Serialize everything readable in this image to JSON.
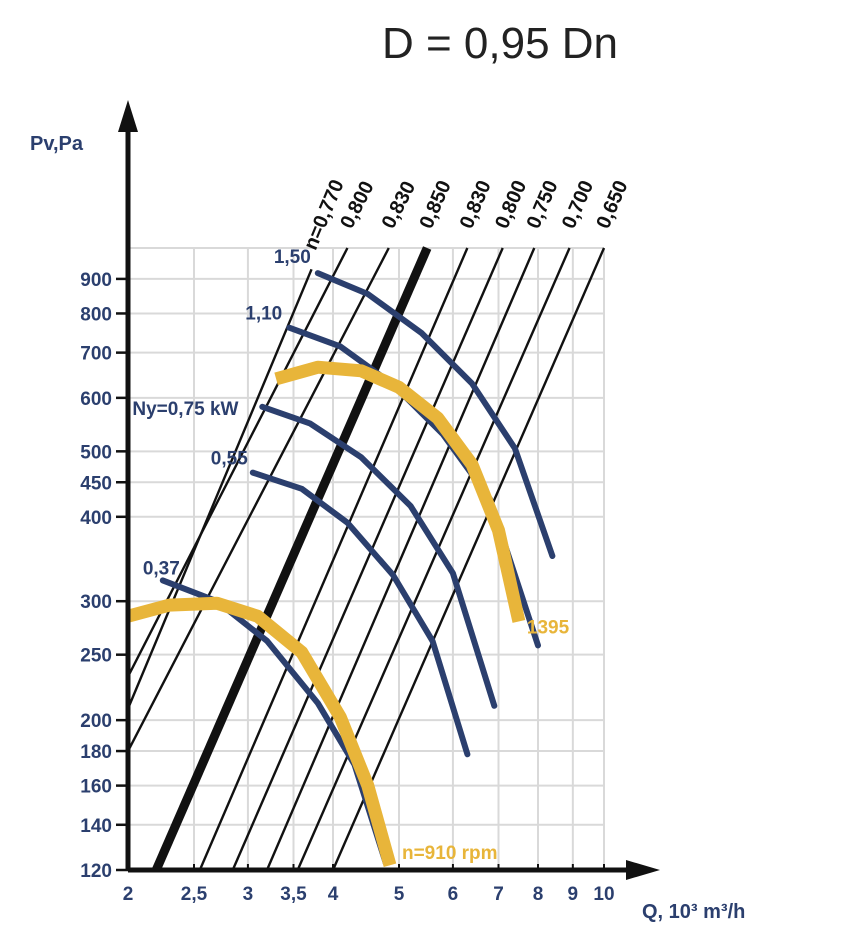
{
  "chart_data": {
    "type": "line",
    "title": "D = 0,95 Dn",
    "ylabel": "Pv,Pa",
    "xlabel": "Q, 10³ m³/h",
    "xscale": "log",
    "yscale": "log",
    "xlim": [
      2,
      10
    ],
    "ylim": [
      120,
      1000
    ],
    "x_ticks": [
      {
        "v": 2,
        "label": "2"
      },
      {
        "v": 2.5,
        "label": "2,5"
      },
      {
        "v": 3,
        "label": "3"
      },
      {
        "v": 3.5,
        "label": "3,5"
      },
      {
        "v": 4,
        "label": "4"
      },
      {
        "v": 5,
        "label": "5"
      },
      {
        "v": 6,
        "label": "6"
      },
      {
        "v": 7,
        "label": "7"
      },
      {
        "v": 8,
        "label": "8"
      },
      {
        "v": 9,
        "label": "9"
      },
      {
        "v": 10,
        "label": "10"
      }
    ],
    "y_ticks": [
      {
        "v": 120,
        "label": "120"
      },
      {
        "v": 140,
        "label": "140"
      },
      {
        "v": 160,
        "label": "160"
      },
      {
        "v": 180,
        "label": "180"
      },
      {
        "v": 200,
        "label": "200"
      },
      {
        "v": 250,
        "label": "250"
      },
      {
        "v": 300,
        "label": "300"
      },
      {
        "v": 400,
        "label": "400"
      },
      {
        "v": 450,
        "label": "450"
      },
      {
        "v": 500,
        "label": "500"
      },
      {
        "v": 600,
        "label": "600"
      },
      {
        "v": 700,
        "label": "700"
      },
      {
        "v": 800,
        "label": "800"
      },
      {
        "v": 900,
        "label": "900"
      }
    ],
    "grid": true,
    "colors": {
      "axis": "#111111",
      "power": "#2b3f6e",
      "speed": "#e8b53a",
      "efficiency": "#111111",
      "grid": "#d9d9d9"
    },
    "efficiency_lines": [
      {
        "label": "n=0,770",
        "bold": false,
        "points": [
          [
            2,
            208
          ],
          [
            3.72,
            930
          ]
        ]
      },
      {
        "label": "0,800",
        "bold": false,
        "points": [
          [
            2,
            232
          ],
          [
            4.2,
            1000
          ]
        ]
      },
      {
        "label": "0,830",
        "bold": false,
        "points": [
          [
            2,
            180
          ],
          [
            4.83,
            1000
          ]
        ]
      },
      {
        "label": "0,850",
        "bold": true,
        "points": [
          [
            2.2,
            120
          ],
          [
            5.5,
            1000
          ]
        ]
      },
      {
        "label": "0,830",
        "bold": false,
        "points": [
          [
            2.55,
            120
          ],
          [
            6.3,
            1000
          ]
        ]
      },
      {
        "label": "0,800",
        "bold": false,
        "points": [
          [
            2.85,
            120
          ],
          [
            7.1,
            1000
          ]
        ]
      },
      {
        "label": "0,750",
        "bold": false,
        "points": [
          [
            3.2,
            120
          ],
          [
            7.9,
            1000
          ]
        ]
      },
      {
        "label": "0,700",
        "bold": false,
        "points": [
          [
            3.55,
            120
          ],
          [
            8.9,
            1000
          ]
        ]
      },
      {
        "label": "0,650",
        "bold": false,
        "points": [
          [
            4.0,
            120
          ],
          [
            10,
            1000
          ]
        ]
      }
    ],
    "power_curves": [
      {
        "label": "0,37",
        "points": [
          [
            2.25,
            322
          ],
          [
            2.7,
            300
          ],
          [
            3.2,
            262
          ],
          [
            3.8,
            212
          ],
          [
            4.3,
            172
          ],
          [
            4.78,
            123
          ]
        ]
      },
      {
        "label": "0,55",
        "points": [
          [
            3.05,
            465
          ],
          [
            3.6,
            440
          ],
          [
            4.2,
            392
          ],
          [
            4.9,
            328
          ],
          [
            5.6,
            262
          ],
          [
            6.3,
            178
          ]
        ]
      },
      {
        "label": "Ny=0,75 kW",
        "points": [
          [
            3.15,
            582
          ],
          [
            3.7,
            550
          ],
          [
            4.4,
            490
          ],
          [
            5.2,
            415
          ],
          [
            6.0,
            330
          ],
          [
            6.9,
            210
          ]
        ]
      },
      {
        "label": "1,10",
        "points": [
          [
            3.45,
            762
          ],
          [
            4.1,
            715
          ],
          [
            4.9,
            628
          ],
          [
            5.8,
            530
          ],
          [
            6.8,
            425
          ],
          [
            8.0,
            258
          ]
        ]
      },
      {
        "label": "1,50",
        "points": [
          [
            3.8,
            918
          ],
          [
            4.5,
            855
          ],
          [
            5.4,
            748
          ],
          [
            6.4,
            630
          ],
          [
            7.4,
            505
          ],
          [
            8.4,
            350
          ]
        ]
      }
    ],
    "speed_curves": [
      {
        "label": "n=910 rpm",
        "points": [
          [
            2.0,
            285
          ],
          [
            2.3,
            296
          ],
          [
            2.7,
            298
          ],
          [
            3.1,
            285
          ],
          [
            3.6,
            252
          ],
          [
            4.1,
            202
          ],
          [
            4.5,
            160
          ],
          [
            4.85,
            122
          ]
        ]
      },
      {
        "label": "1395",
        "points": [
          [
            3.3,
            640
          ],
          [
            3.8,
            666
          ],
          [
            4.4,
            658
          ],
          [
            5.0,
            622
          ],
          [
            5.7,
            560
          ],
          [
            6.4,
            478
          ],
          [
            7.0,
            382
          ],
          [
            7.5,
            280
          ]
        ]
      }
    ]
  }
}
